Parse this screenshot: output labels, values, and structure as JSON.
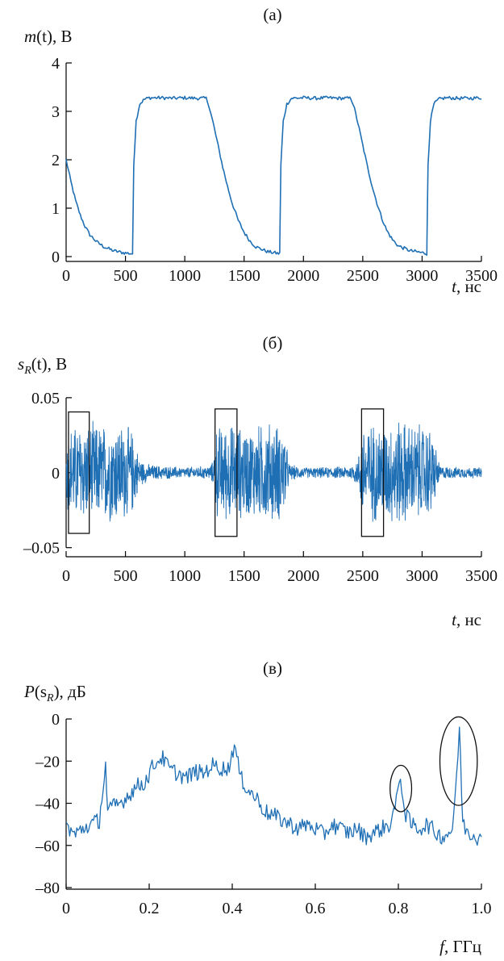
{
  "figure": {
    "accent_color": "#1f6fb5"
  },
  "chart_data": [
    {
      "type": "line",
      "panel_label": "(а)",
      "title": "",
      "ylabel": {
        "main": "m",
        "sub": "",
        "rest": "(t), В"
      },
      "xlabel": "t, нс",
      "xlim": [
        0,
        3500
      ],
      "ylim": [
        0,
        4
      ],
      "xticks": [
        0,
        500,
        1000,
        1500,
        2000,
        2500,
        3000,
        3500
      ],
      "yticks": [
        0,
        1,
        2,
        3,
        4
      ],
      "grid": false,
      "series": [
        {
          "x": [
            0,
            40,
            80,
            120,
            160,
            200,
            260,
            320,
            400,
            480,
            560,
            561,
            570,
            590,
            620,
            660,
            700,
            800,
            900,
            1000,
            1100,
            1180,
            1200,
            1240,
            1280,
            1320,
            1360,
            1400,
            1450,
            1500,
            1550,
            1600,
            1700,
            1800,
            1801,
            1810,
            1830,
            1860,
            1900,
            2000,
            2100,
            2200,
            2300,
            2400,
            2420,
            2460,
            2500,
            2540,
            2580,
            2620,
            2660,
            2700,
            2750,
            2800,
            2900,
            3000,
            3040,
            3041,
            3050,
            3070,
            3100,
            3140,
            3200,
            3300,
            3400,
            3500
          ],
          "y": [
            2.0,
            1.55,
            1.15,
            0.85,
            0.62,
            0.45,
            0.3,
            0.2,
            0.12,
            0.08,
            0.06,
            0.3,
            1.9,
            2.8,
            3.15,
            3.25,
            3.28,
            3.28,
            3.27,
            3.28,
            3.27,
            3.27,
            3.15,
            2.75,
            2.3,
            1.85,
            1.45,
            1.1,
            0.75,
            0.5,
            0.32,
            0.2,
            0.1,
            0.06,
            0.3,
            1.9,
            2.8,
            3.15,
            3.27,
            3.28,
            3.27,
            3.28,
            3.27,
            3.27,
            3.15,
            2.75,
            2.3,
            1.85,
            1.45,
            1.1,
            0.8,
            0.55,
            0.35,
            0.22,
            0.12,
            0.08,
            0.06,
            0.3,
            1.9,
            2.8,
            3.15,
            3.25,
            3.28,
            3.27,
            3.27,
            3.28
          ]
        }
      ],
      "boxes": [],
      "ellipses": []
    },
    {
      "type": "line",
      "panel_label": "(б)",
      "title": "",
      "ylabel": {
        "main": "s",
        "sub": "R",
        "rest": "(t), В"
      },
      "xlabel": "t, нс",
      "xlim": [
        0,
        3500
      ],
      "ylim": [
        -0.055,
        0.058
      ],
      "xticks": [
        0,
        500,
        1000,
        1500,
        2000,
        2500,
        3000,
        3500
      ],
      "yticks": [
        -0.05,
        0,
        0.05
      ],
      "ytick_labels": [
        "–0.05",
        "0",
        "0.05"
      ],
      "grid": false,
      "series": [
        {
          "type": "envelope",
          "x": [
            0,
            30,
            100,
            200,
            300,
            400,
            500,
            560,
            620,
            700,
            800,
            1000,
            1200,
            1240,
            1260,
            1300,
            1400,
            1500,
            1600,
            1700,
            1800,
            1840,
            1880,
            2000,
            2200,
            2400,
            2460,
            2500,
            2600,
            2700,
            2800,
            2900,
            3000,
            3080,
            3150,
            3300,
            3500
          ],
          "amp": [
            0.03,
            0.034,
            0.035,
            0.036,
            0.035,
            0.037,
            0.035,
            0.03,
            0.01,
            0.006,
            0.005,
            0.004,
            0.005,
            0.008,
            0.033,
            0.034,
            0.035,
            0.033,
            0.034,
            0.037,
            0.035,
            0.032,
            0.006,
            0.004,
            0.004,
            0.005,
            0.01,
            0.035,
            0.036,
            0.035,
            0.04,
            0.036,
            0.035,
            0.033,
            0.005,
            0.004,
            0.004
          ]
        }
      ],
      "boxes": [
        {
          "x0": 20,
          "x1": 195,
          "y0": -0.0405,
          "y1": 0.0405
        },
        {
          "x0": 1255,
          "x1": 1440,
          "y0": -0.0425,
          "y1": 0.0425
        },
        {
          "x0": 2490,
          "x1": 2675,
          "y0": -0.0425,
          "y1": 0.0425
        }
      ],
      "ellipses": []
    },
    {
      "type": "line",
      "panel_label": "(в)",
      "title": "",
      "ylabel": {
        "main": "P",
        "sub": "",
        "rest": "(s",
        "sub2": "R",
        "rest2": "), дБ"
      },
      "xlabel": "f, ГГц",
      "xlim": [
        0,
        1.0
      ],
      "ylim": [
        -80,
        5
      ],
      "xticks": [
        0,
        0.2,
        0.4,
        0.6,
        0.8,
        1.0
      ],
      "xtick_labels": [
        "0",
        "0.2",
        "0.4",
        "0.6",
        "0.8",
        "1.0"
      ],
      "yticks": [
        -80,
        -60,
        -40,
        -20,
        0
      ],
      "ytick_labels": [
        "–80",
        "–60",
        "–40",
        "–20",
        "0"
      ],
      "grid": false,
      "series": [
        {
          "x": [
            0.0,
            0.02,
            0.04,
            0.06,
            0.08,
            0.095,
            0.1,
            0.11,
            0.13,
            0.15,
            0.17,
            0.19,
            0.21,
            0.23,
            0.25,
            0.27,
            0.29,
            0.31,
            0.33,
            0.35,
            0.37,
            0.39,
            0.405,
            0.42,
            0.44,
            0.46,
            0.48,
            0.5,
            0.52,
            0.54,
            0.56,
            0.58,
            0.6,
            0.62,
            0.64,
            0.66,
            0.68,
            0.7,
            0.72,
            0.74,
            0.76,
            0.78,
            0.795,
            0.805,
            0.815,
            0.83,
            0.85,
            0.87,
            0.89,
            0.91,
            0.93,
            0.94,
            0.947,
            0.955,
            0.97,
            0.99,
            1.0
          ],
          "y": [
            -50,
            -55,
            -52,
            -50,
            -48,
            -22,
            -45,
            -42,
            -40,
            -36,
            -32,
            -30,
            -22,
            -18,
            -24,
            -26,
            -28,
            -25,
            -26,
            -22,
            -23,
            -24,
            -12,
            -28,
            -34,
            -38,
            -44,
            -46,
            -48,
            -50,
            -52,
            -50,
            -52,
            -55,
            -50,
            -52,
            -54,
            -52,
            -56,
            -54,
            -52,
            -50,
            -40,
            -26,
            -44,
            -50,
            -52,
            -50,
            -54,
            -56,
            -52,
            -30,
            -3,
            -50,
            -54,
            -56,
            -52
          ]
        }
      ],
      "boxes": [],
      "ellipses": [
        {
          "cx": 0.806,
          "cy": -33,
          "rx": 0.026,
          "ry": 11
        },
        {
          "cx": 0.945,
          "cy": -20,
          "rx": 0.045,
          "ry": 21
        }
      ]
    }
  ]
}
